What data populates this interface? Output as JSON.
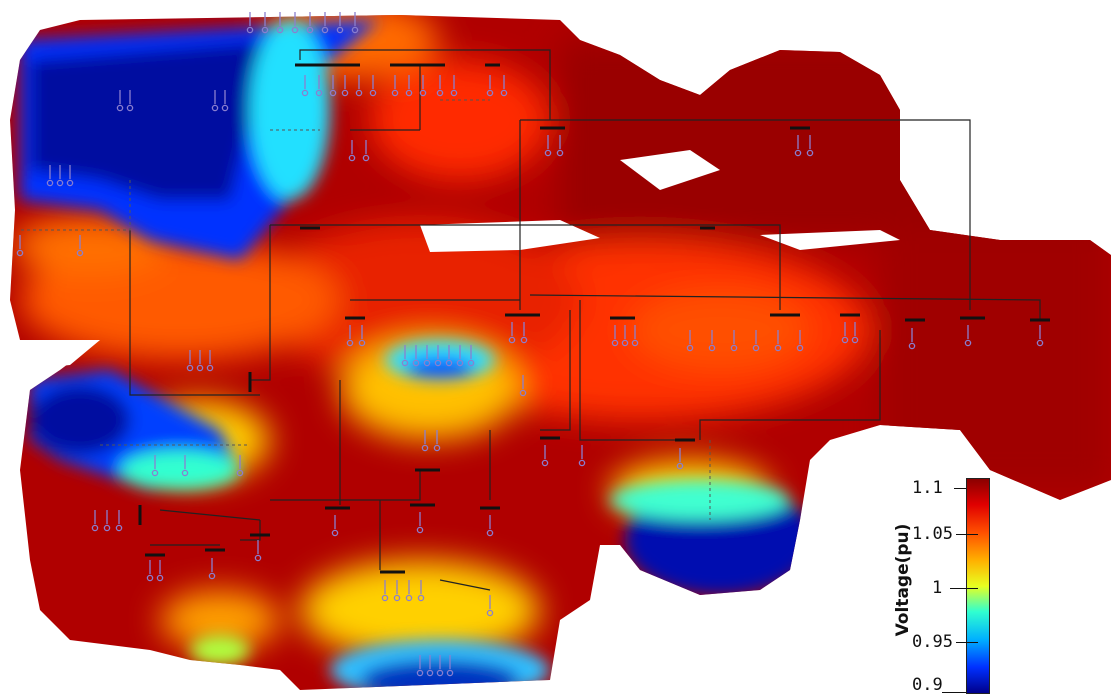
{
  "colorbar": {
    "title": "Voltage(pu)",
    "ticks": [
      "1.1",
      "1.05",
      "1",
      "0.95",
      "0.9"
    ],
    "colors": [
      "#8b0000",
      "#ff0000",
      "#ff8000",
      "#ffff00",
      "#00ffff",
      "#0080ff",
      "#00008b"
    ]
  },
  "bus_symbols": {
    "bus_bar_color": "#111111",
    "load_symbol_color": "#8a7fd0",
    "line_color": "#222222"
  }
}
